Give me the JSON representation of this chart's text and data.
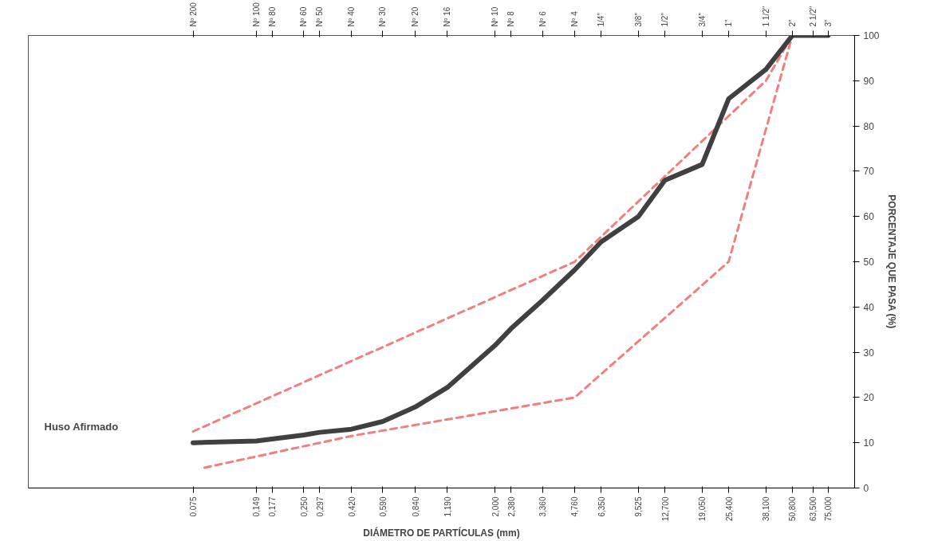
{
  "chart_data": {
    "type": "line",
    "xlabel": "DIÁMETRO DE PARTÍCULAS (mm)",
    "ylabel": "PORCENTAJE QUE PASA (%)",
    "log": "x",
    "grid": false,
    "marker": "none",
    "xlim": [
      0.0125,
      100
    ],
    "ylim": [
      0,
      100
    ],
    "yticks": [
      0,
      10,
      20,
      30,
      40,
      50,
      60,
      70,
      80,
      90,
      100
    ],
    "xticks": [
      {
        "value": 0.075,
        "label": "0.075"
      },
      {
        "value": 0.149,
        "label": "0,149"
      },
      {
        "value": 0.177,
        "label": "0,177"
      },
      {
        "value": 0.25,
        "label": "0,250"
      },
      {
        "value": 0.297,
        "label": "0,297"
      },
      {
        "value": 0.42,
        "label": "0,420"
      },
      {
        "value": 0.59,
        "label": "0,590"
      },
      {
        "value": 0.84,
        "label": "0,840"
      },
      {
        "value": 1.19,
        "label": "1,190"
      },
      {
        "value": 2.0,
        "label": "2,000"
      },
      {
        "value": 2.38,
        "label": "2,380"
      },
      {
        "value": 3.36,
        "label": "3,360"
      },
      {
        "value": 4.76,
        "label": "4,760"
      },
      {
        "value": 6.35,
        "label": "6,350"
      },
      {
        "value": 9.525,
        "label": "9,525"
      },
      {
        "value": 12.7,
        "label": "12,700"
      },
      {
        "value": 19.05,
        "label": "19,050"
      },
      {
        "value": 25.4,
        "label": "25,400"
      },
      {
        "value": 38.1,
        "label": "38,100"
      },
      {
        "value": 50.8,
        "label": "50,800"
      },
      {
        "value": 63.5,
        "label": "63,500"
      },
      {
        "value": 75,
        "label": "75,000"
      }
    ],
    "annotations": [
      "Nº 200",
      "Nº 100",
      "Nº 80",
      "Nº 60",
      "Nº 50",
      "Nº 40",
      "Nº 30",
      "Nº 20",
      "Nº 16",
      "Nº 10",
      "Nº 8",
      "Nº 6",
      "Nº 4",
      "1/4\"",
      "3/8\"",
      "1/2\"",
      "3/4\"",
      "1\"",
      "1 1/2\"",
      "2\"",
      "2 1/2\"",
      "3\"",
      "Huso Afirmado"
    ],
    "series": [
      {
        "color": "#f08080",
        "line_style": "dashed",
        "x": [
          0.075,
          4.76,
          38.1,
          50.8
        ],
        "values": [
          12.5,
          50,
          90,
          100
        ]
      },
      {
        "color": "#f08080",
        "line_style": "dashed",
        "x": [
          0.085,
          0.42,
          4.76,
          25.4,
          50.8
        ],
        "values": [
          4.5,
          11.5,
          20,
          50,
          100
        ]
      },
      {
        "color": "#404040",
        "line_style": "solid",
        "x": [
          0.075,
          0.149,
          0.25,
          0.297,
          0.42,
          0.59,
          0.84,
          1.19,
          2.0,
          2.38,
          3.36,
          4.76,
          6.35,
          9.525,
          12.7,
          19.05,
          25.4,
          38.1,
          50.8,
          63.5,
          75
        ],
        "values": [
          10,
          10.4,
          11.7,
          12.3,
          13,
          14.7,
          17.9,
          22.2,
          31.5,
          35.2,
          41.5,
          48.2,
          54.4,
          60,
          68,
          71.5,
          86,
          92.5,
          100,
          100,
          100
        ]
      }
    ]
  }
}
